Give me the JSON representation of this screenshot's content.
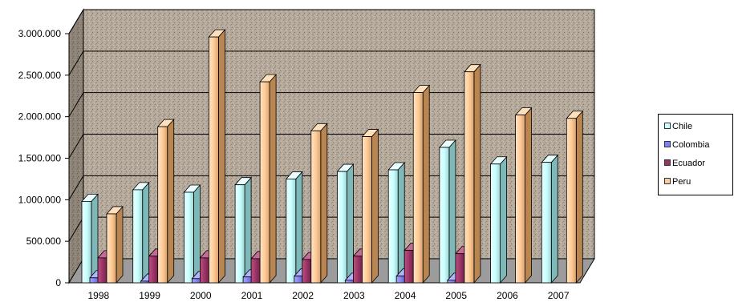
{
  "chart_data": {
    "type": "bar",
    "title": "",
    "xlabel": "",
    "ylabel": "",
    "categories": [
      "1998",
      "1999",
      "2000",
      "2001",
      "2002",
      "2003",
      "2004",
      "2005",
      "2006",
      "2007"
    ],
    "ylim": [
      0,
      3000000
    ],
    "yticks": [
      0,
      500000,
      1000000,
      1500000,
      2000000,
      2500000,
      3000000
    ],
    "ytick_labels": [
      "0",
      "500.000",
      "1.000.000",
      "1.500.000",
      "2.000.000",
      "2.500.000",
      "3.000.000"
    ],
    "grid": true,
    "legend_position": "right",
    "series": [
      {
        "name": "Chile",
        "color": "#ccffff",
        "values": [
          980000,
          1120000,
          1090000,
          1180000,
          1250000,
          1340000,
          1360000,
          1630000,
          1430000,
          1450000
        ]
      },
      {
        "name": "Colombia",
        "color": "#8080ff",
        "values": [
          60000,
          20000,
          50000,
          70000,
          80000,
          30000,
          80000,
          30000,
          0,
          0
        ]
      },
      {
        "name": "Ecuador",
        "color": "#993366",
        "values": [
          300000,
          320000,
          300000,
          290000,
          280000,
          320000,
          390000,
          350000,
          0,
          0
        ]
      },
      {
        "name": "Peru",
        "color": "#ffcc99",
        "values": [
          830000,
          1880000,
          2960000,
          2420000,
          1830000,
          1760000,
          2290000,
          2540000,
          2020000,
          1980000
        ]
      }
    ]
  }
}
